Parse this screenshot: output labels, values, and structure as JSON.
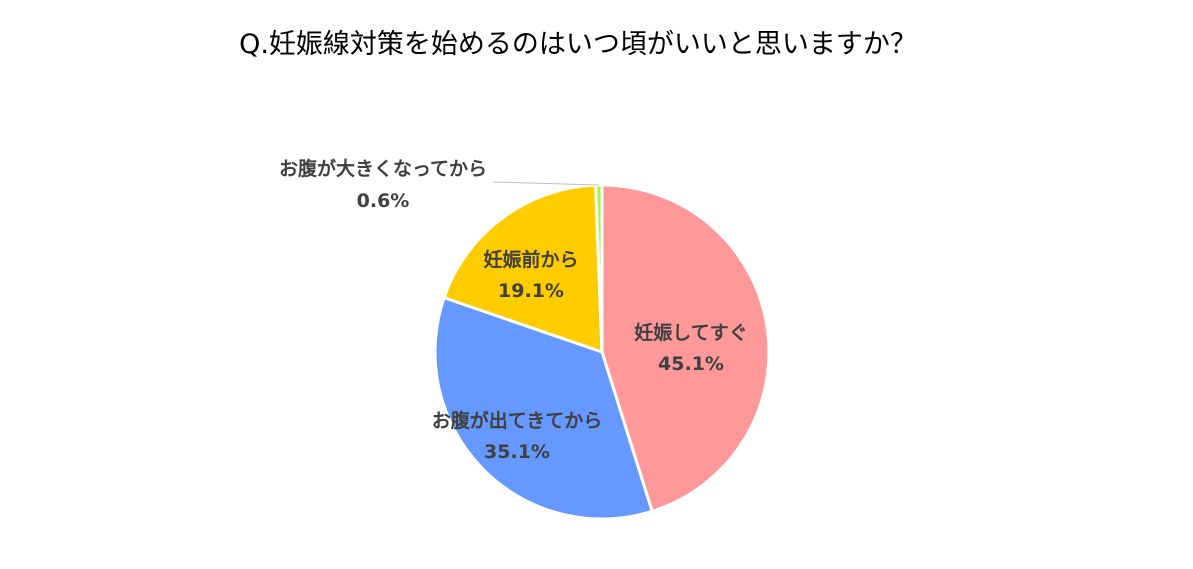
{
  "chart_data": {
    "type": "pie",
    "title": "Q.妊娠線対策を始めるのはいつ頃がいいと思いますか？",
    "slices": [
      {
        "label": "妊娠してすぐ",
        "value": 45.1,
        "value_label": "45.1%",
        "color": "#FF9999"
      },
      {
        "label": "お腹が出てきてから",
        "value": 35.1,
        "value_label": "35.1%",
        "color": "#6699FF"
      },
      {
        "label": "妊娠前から",
        "value": 19.1,
        "value_label": "19.1%",
        "color": "#FFCC00"
      },
      {
        "label": "お腹が大きくなってから",
        "value": 0.6,
        "value_label": "0.6%",
        "color": "#99FF33"
      }
    ],
    "start_angle": "12 o'clock",
    "direction": "clockwise",
    "slice_border_color": "#FFFFFF",
    "leader_line_color": "#BFBFBF",
    "legend": "none"
  }
}
